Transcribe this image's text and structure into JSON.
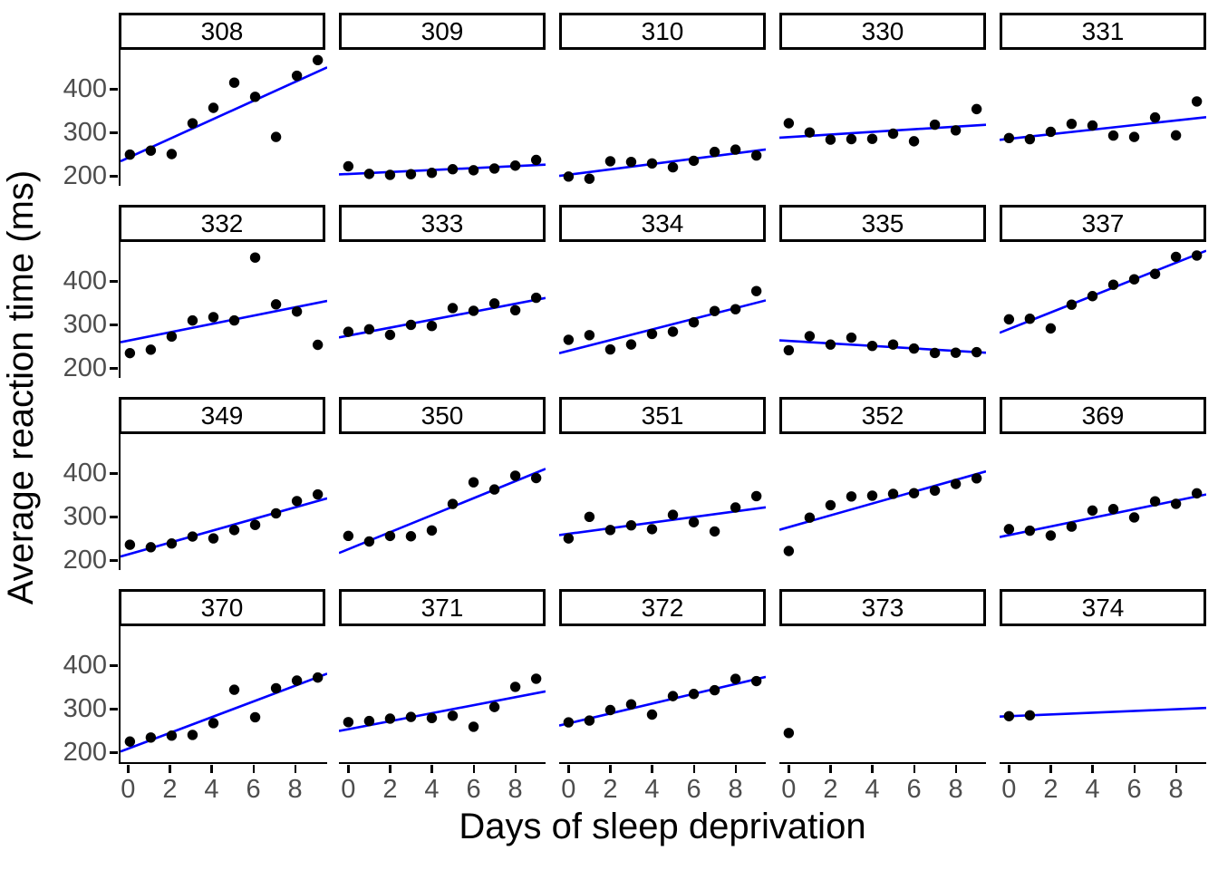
{
  "figure": {
    "y_axis": {
      "title": "Average reaction time (ms)",
      "ticks": [
        400,
        300,
        200
      ]
    },
    "x_axis": {
      "title": "Days of sleep deprivation",
      "ticks": [
        0,
        2,
        4,
        6,
        8
      ]
    }
  },
  "chart_data": {
    "type": "scatter",
    "title": "",
    "xlabel": "Days of sleep deprivation",
    "ylabel": "Average reaction time (ms)",
    "facet_by": "Subject",
    "facet_layout": {
      "rows": 4,
      "cols": 5
    },
    "x_ticks": [
      0,
      2,
      4,
      6,
      8
    ],
    "y_ticks": [
      200,
      300,
      400
    ],
    "x_domain": [
      -0.45,
      9.45
    ],
    "y_domain": [
      178,
      490
    ],
    "grid": "off",
    "legend": "none",
    "point_color": "#000000",
    "fit_line_color": "#0000ff",
    "fit_line": "per-facet least-squares line drawn across full x range (no line when fewer than 2 points)",
    "facets": [
      {
        "subject": "308",
        "days": [
          0,
          1,
          2,
          3,
          4,
          5,
          6,
          7,
          8,
          9
        ],
        "reaction": [
          249.6,
          258.7,
          250.8,
          321.4,
          356.9,
          414.7,
          382.2,
          290.1,
          430.6,
          466.4
        ]
      },
      {
        "subject": "309",
        "days": [
          0,
          1,
          2,
          3,
          4,
          5,
          6,
          7,
          8,
          9
        ],
        "reaction": [
          222.7,
          205.3,
          203.0,
          204.7,
          207.7,
          216.0,
          213.6,
          217.7,
          224.3,
          237.3
        ]
      },
      {
        "subject": "310",
        "days": [
          0,
          1,
          2,
          3,
          4,
          5,
          6,
          7,
          8,
          9
        ],
        "reaction": [
          199.1,
          194.3,
          234.3,
          232.8,
          229.3,
          220.5,
          235.4,
          255.8,
          261.0,
          247.5
        ]
      },
      {
        "subject": "330",
        "days": [
          0,
          1,
          2,
          3,
          4,
          5,
          6,
          7,
          8,
          9
        ],
        "reaction": [
          321.5,
          300.4,
          283.9,
          285.1,
          285.8,
          297.6,
          280.2,
          318.3,
          305.3,
          354.0
        ]
      },
      {
        "subject": "331",
        "days": [
          0,
          1,
          2,
          3,
          4,
          5,
          6,
          7,
          8,
          9
        ],
        "reaction": [
          287.6,
          285.0,
          301.8,
          320.1,
          316.3,
          293.3,
          290.1,
          334.8,
          293.7,
          371.6
        ]
      },
      {
        "subject": "332",
        "days": [
          0,
          1,
          2,
          3,
          4,
          5,
          6,
          7,
          8,
          9
        ],
        "reaction": [
          234.9,
          242.8,
          273.0,
          309.8,
          317.5,
          310.0,
          454.2,
          346.8,
          330.3,
          253.9
        ]
      },
      {
        "subject": "333",
        "days": [
          0,
          1,
          2,
          3,
          4,
          5,
          6,
          7,
          8,
          9
        ],
        "reaction": [
          283.8,
          289.6,
          276.8,
          299.8,
          297.2,
          338.2,
          332.0,
          348.8,
          333.4,
          362.0
        ]
      },
      {
        "subject": "334",
        "days": [
          0,
          1,
          2,
          3,
          4,
          5,
          6,
          7,
          8,
          9
        ],
        "reaction": [
          265.5,
          276.2,
          243.4,
          254.7,
          279.0,
          284.2,
          305.5,
          331.5,
          335.7,
          377.3
        ]
      },
      {
        "subject": "335",
        "days": [
          0,
          1,
          2,
          3,
          4,
          5,
          6,
          7,
          8,
          9
        ],
        "reaction": [
          241.6,
          273.9,
          254.5,
          270.5,
          251.5,
          254.6,
          245.5,
          235.3,
          235.8,
          237.2
        ]
      },
      {
        "subject": "337",
        "days": [
          0,
          1,
          2,
          3,
          4,
          5,
          6,
          7,
          8,
          9
        ],
        "reaction": [
          312.4,
          313.8,
          291.6,
          346.1,
          365.7,
          391.8,
          404.3,
          416.7,
          455.9,
          458.9
        ]
      },
      {
        "subject": "349",
        "days": [
          0,
          1,
          2,
          3,
          4,
          5,
          6,
          7,
          8,
          9
        ],
        "reaction": [
          236.1,
          230.3,
          238.9,
          254.9,
          250.7,
          269.8,
          281.6,
          308.1,
          336.3,
          351.6
        ]
      },
      {
        "subject": "350",
        "days": [
          0,
          1,
          2,
          3,
          4,
          5,
          6,
          7,
          8,
          9
        ],
        "reaction": [
          256.3,
          243.5,
          256.2,
          255.5,
          268.9,
          329.7,
          379.4,
          362.9,
          394.5,
          389.1
        ]
      },
      {
        "subject": "351",
        "days": [
          0,
          1,
          2,
          3,
          4,
          5,
          6,
          7,
          8,
          9
        ],
        "reaction": [
          250.5,
          300.1,
          269.9,
          280.6,
          271.8,
          304.6,
          287.7,
          266.6,
          321.5,
          347.6
        ]
      },
      {
        "subject": "352",
        "days": [
          0,
          1,
          2,
          3,
          4,
          5,
          6,
          7,
          8,
          9
        ],
        "reaction": [
          221.7,
          298.2,
          326.9,
          346.9,
          348.7,
          352.8,
          354.4,
          360.4,
          375.6,
          388.5
        ]
      },
      {
        "subject": "369",
        "days": [
          0,
          1,
          2,
          3,
          4,
          5,
          6,
          7,
          8,
          9
        ],
        "reaction": [
          271.9,
          268.4,
          257.2,
          277.7,
          314.5,
          317.9,
          298.7,
          335.7,
          330.0,
          354.0
        ]
      },
      {
        "subject": "370",
        "days": [
          0,
          1,
          2,
          3,
          4,
          5,
          6,
          7,
          8,
          9
        ],
        "reaction": [
          225.3,
          234.5,
          238.9,
          240.5,
          267.5,
          344.2,
          281.1,
          347.6,
          365.2,
          372.2
        ]
      },
      {
        "subject": "371",
        "days": [
          0,
          1,
          2,
          3,
          4,
          5,
          6,
          7,
          8,
          9
        ],
        "reaction": [
          269.9,
          272.4,
          277.9,
          281.8,
          279.2,
          284.5,
          259.3,
          304.6,
          350.8,
          369.5
        ]
      },
      {
        "subject": "372",
        "days": [
          0,
          1,
          2,
          3,
          4,
          5,
          6,
          7,
          8,
          9
        ],
        "reaction": [
          269.4,
          273.5,
          297.6,
          310.6,
          287.2,
          329.6,
          334.5,
          343.2,
          369.1,
          364.1
        ]
      },
      {
        "subject": "373",
        "days": [
          0
        ],
        "reaction": [
          245.0
        ]
      },
      {
        "subject": "374",
        "days": [
          0,
          1
        ],
        "reaction": [
          283.5,
          285.5
        ]
      }
    ]
  }
}
